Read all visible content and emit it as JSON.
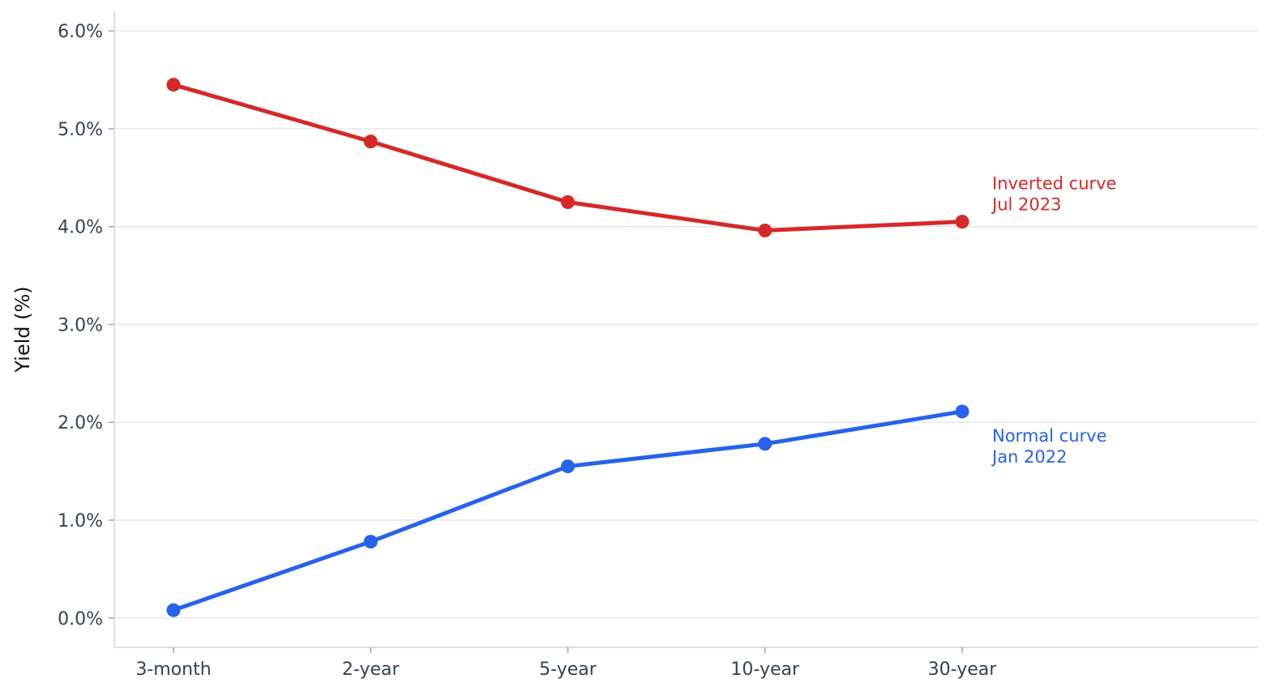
{
  "chart_data": {
    "type": "line",
    "title": "",
    "xlabel": "",
    "ylabel": "Yield (%)",
    "categories": [
      "3-month",
      "2-year",
      "5-year",
      "10-year",
      "30-year"
    ],
    "ylim": [
      -0.3,
      6.2
    ],
    "yticks": [
      0,
      1,
      2,
      3,
      4,
      5,
      6
    ],
    "ytick_labels": [
      "0.0%",
      "1.0%",
      "2.0%",
      "3.0%",
      "4.0%",
      "5.0%",
      "6.0%"
    ],
    "grid": "horizontal",
    "legend": "direct labels at right end of each line",
    "series": [
      {
        "name": "Inverted curve Jul 2023",
        "label_lines": [
          "Inverted curve",
          "Jul 2023"
        ],
        "color": "#d62828",
        "values": [
          5.45,
          4.87,
          4.25,
          3.96,
          4.05
        ]
      },
      {
        "name": "Normal curve Jan 2022",
        "label_lines": [
          "Normal curve",
          "Jan 2022"
        ],
        "color": "#2563eb",
        "values": [
          0.08,
          0.78,
          1.55,
          1.78,
          2.11
        ]
      }
    ]
  }
}
